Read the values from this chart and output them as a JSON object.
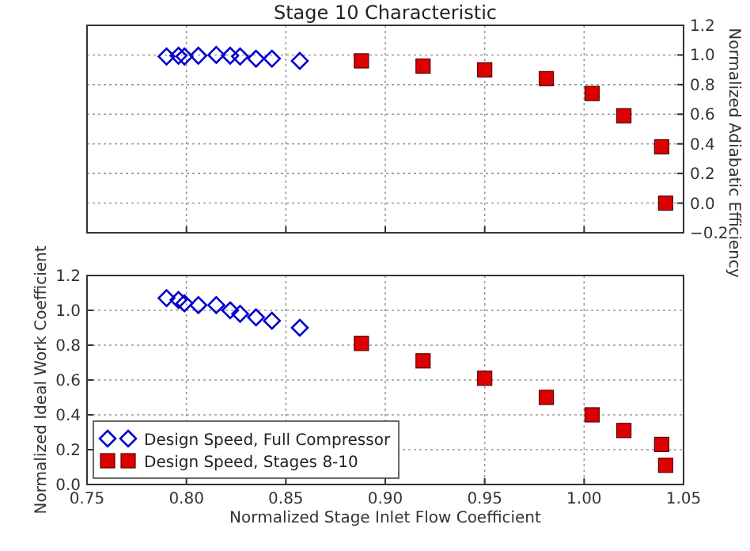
{
  "chart_data": [
    {
      "type": "scatter",
      "title": "Stage 10 Characteristic",
      "ylabel": "Normalized Adiabatic Efficiency",
      "xlim": [
        0.75,
        1.05
      ],
      "xticks": [
        0.75,
        0.8,
        0.85,
        0.9,
        0.95,
        1.0,
        1.05
      ],
      "ylim": [
        -0.2,
        1.2
      ],
      "yticks": [
        {
          "value": -0.2,
          "label": "−0.2"
        },
        {
          "value": 0.0,
          "label": "0.0"
        },
        {
          "value": 0.2,
          "label": "0.2"
        },
        {
          "value": 0.4,
          "label": "0.4"
        },
        {
          "value": 0.6,
          "label": "0.6"
        },
        {
          "value": 0.8,
          "label": "0.8"
        },
        {
          "value": 1.0,
          "label": "1.0"
        },
        {
          "value": 1.2,
          "label": "1.2"
        }
      ],
      "tick_labels": "y",
      "grid": true,
      "legend": false,
      "series": [
        {
          "color": "#0000cc",
          "marker": "diamond",
          "x": [
            0.79,
            0.796,
            0.799,
            0.806,
            0.815,
            0.822,
            0.827,
            0.835,
            0.843,
            0.857
          ],
          "values": [
            0.99,
            0.995,
            0.99,
            0.995,
            1.0,
            0.995,
            0.99,
            0.975,
            0.975,
            0.96
          ]
        },
        {
          "color": "#dd0000",
          "marker": "square",
          "x": [
            0.888,
            0.919,
            0.95,
            0.981,
            1.004,
            1.02,
            1.039,
            1.041
          ],
          "values": [
            0.96,
            0.925,
            0.9,
            0.84,
            0.74,
            0.59,
            0.38,
            0.0
          ]
        }
      ]
    },
    {
      "type": "scatter",
      "xlabel": "Normalized Stage Inlet Flow Coefficient",
      "ylabel": "Normalized Ideal Work Coefficient",
      "xlim": [
        0.75,
        1.05
      ],
      "xticks": [
        {
          "value": 0.75,
          "label": "0.75"
        },
        {
          "value": 0.8,
          "label": "0.80"
        },
        {
          "value": 0.85,
          "label": "0.85"
        },
        {
          "value": 0.9,
          "label": "0.90"
        },
        {
          "value": 0.95,
          "label": "0.95"
        },
        {
          "value": 1.0,
          "label": "1.00"
        },
        {
          "value": 1.05,
          "label": "1.05"
        }
      ],
      "ylim": [
        0.0,
        1.2
      ],
      "yticks": [
        {
          "value": 0.0,
          "label": "0.0"
        },
        {
          "value": 0.2,
          "label": "0.2"
        },
        {
          "value": 0.4,
          "label": "0.4"
        },
        {
          "value": 0.6,
          "label": "0.6"
        },
        {
          "value": 0.8,
          "label": "0.8"
        },
        {
          "value": 1.0,
          "label": "1.0"
        },
        {
          "value": 1.2,
          "label": "1.2"
        }
      ],
      "grid": true,
      "legend": "bottom left",
      "series": [
        {
          "name": "Design Speed, Full Compressor",
          "color": "#0000cc",
          "marker": "diamond",
          "x": [
            0.79,
            0.796,
            0.799,
            0.806,
            0.815,
            0.822,
            0.827,
            0.835,
            0.843,
            0.857
          ],
          "values": [
            1.07,
            1.06,
            1.04,
            1.03,
            1.03,
            1.0,
            0.98,
            0.96,
            0.94,
            0.9
          ]
        },
        {
          "name": "Design Speed, Stages 8-10",
          "color": "#dd0000",
          "marker": "square",
          "x": [
            0.888,
            0.919,
            0.95,
            0.981,
            1.004,
            1.02,
            1.039,
            1.041
          ],
          "values": [
            0.81,
            0.71,
            0.61,
            0.5,
            0.4,
            0.31,
            0.23,
            0.11
          ]
        }
      ]
    }
  ]
}
